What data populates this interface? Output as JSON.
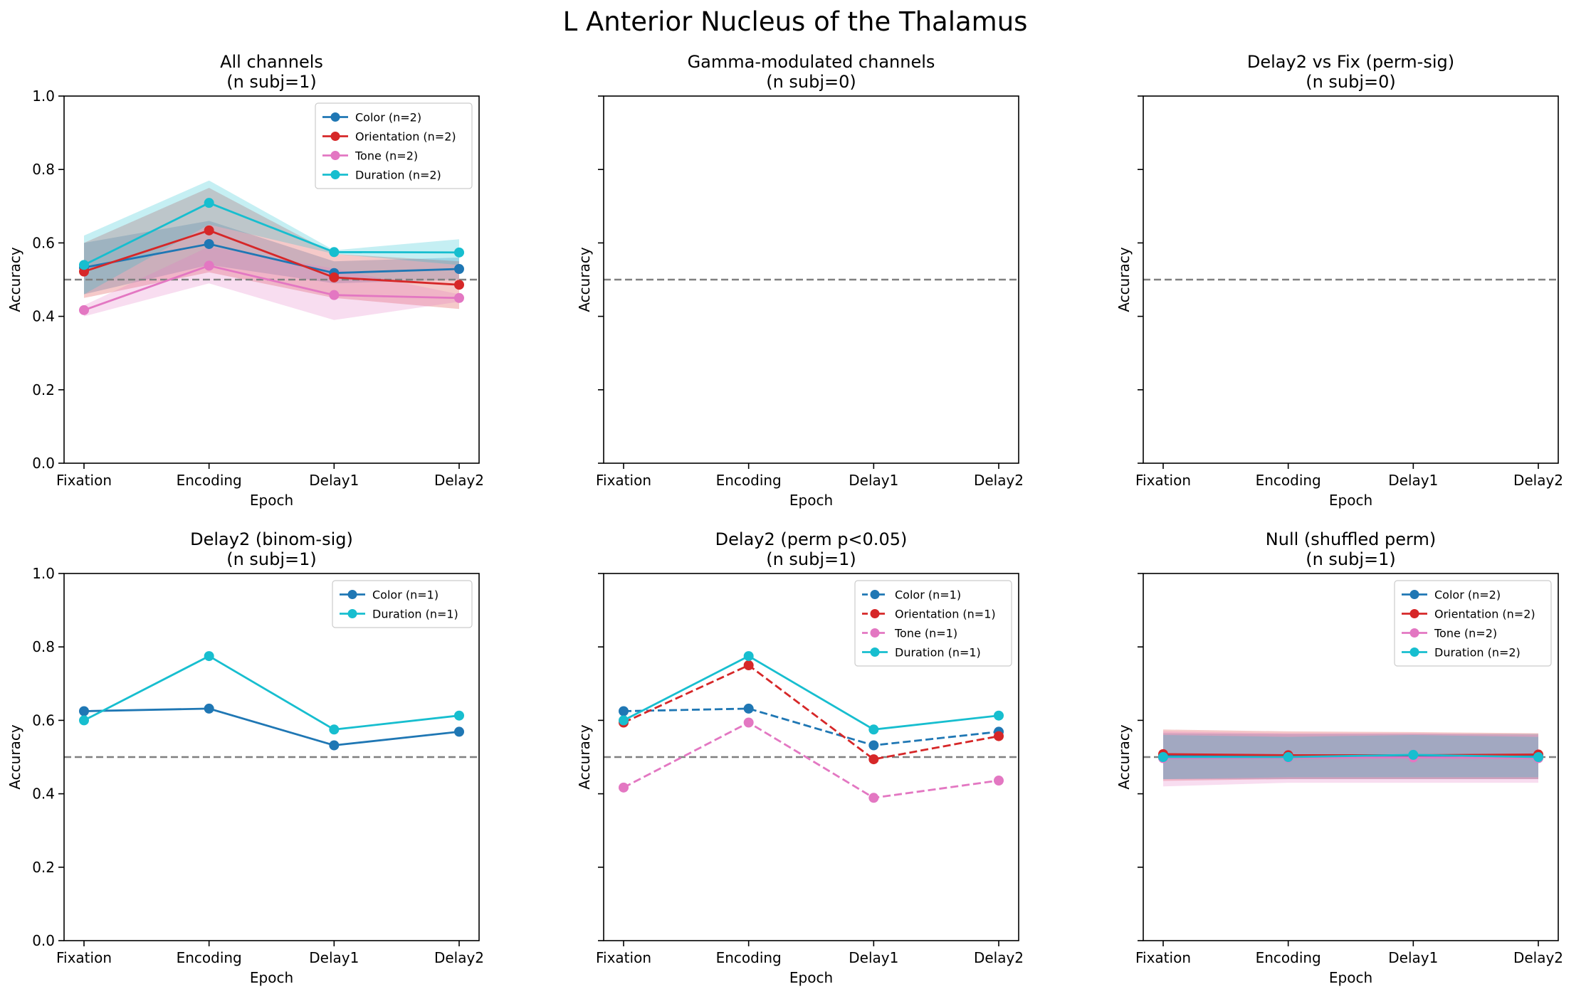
{
  "title": "L Anterior Nucleus of the Thalamus",
  "colors": {
    "Color": "#1f77b4",
    "Orientation": "#d62728",
    "Tone": "#e377c2",
    "Duration": "#17becf",
    "chance": "#808080"
  },
  "chart_data": [
    {
      "type": "line",
      "title": "All channels",
      "subtitle": "(n subj=1)",
      "xlabel": "Epoch",
      "ylabel": "Accuracy",
      "categories": [
        "Fixation",
        "Encoding",
        "Delay1",
        "Delay2"
      ],
      "ylim": [
        0,
        1
      ],
      "yticks": [
        "0.0",
        "0.2",
        "0.4",
        "0.6",
        "0.8",
        "1.0"
      ],
      "show_ytick_labels": true,
      "chance": 0.5,
      "legend": "top-right",
      "series": [
        {
          "name": "Color",
          "label": "Color (n=2)",
          "values": [
            0.533,
            0.597,
            0.518,
            0.529
          ],
          "lower": [
            0.46,
            0.54,
            0.49,
            0.5
          ],
          "upper": [
            0.6,
            0.66,
            0.55,
            0.56
          ],
          "dashed": false
        },
        {
          "name": "Orientation",
          "label": "Orientation (n=2)",
          "values": [
            0.522,
            0.634,
            0.506,
            0.486
          ],
          "lower": [
            0.45,
            0.52,
            0.45,
            0.42
          ],
          "upper": [
            0.6,
            0.75,
            0.57,
            0.55
          ],
          "dashed": false
        },
        {
          "name": "Tone",
          "label": "Tone (n=2)",
          "values": [
            0.417,
            0.538,
            0.458,
            0.45
          ],
          "lower": [
            0.4,
            0.49,
            0.39,
            0.44
          ],
          "upper": [
            0.43,
            0.59,
            0.53,
            0.46
          ],
          "dashed": false
        },
        {
          "name": "Duration",
          "label": "Duration (n=2)",
          "values": [
            0.54,
            0.709,
            0.575,
            0.574
          ],
          "lower": [
            0.46,
            0.65,
            0.57,
            0.54
          ],
          "upper": [
            0.62,
            0.77,
            0.58,
            0.61
          ],
          "dashed": false
        }
      ]
    },
    {
      "type": "line",
      "title": "Gamma-modulated channels",
      "subtitle": "(n subj=0)",
      "xlabel": "Epoch",
      "ylabel": "Accuracy",
      "categories": [
        "Fixation",
        "Encoding",
        "Delay1",
        "Delay2"
      ],
      "ylim": [
        0,
        1
      ],
      "yticks": [
        "0.0",
        "0.2",
        "0.4",
        "0.6",
        "0.8",
        "1.0"
      ],
      "show_ytick_labels": false,
      "chance": 0.5,
      "legend": "none",
      "series": []
    },
    {
      "type": "line",
      "title": "Delay2 vs Fix (perm-sig)",
      "subtitle": "(n subj=0)",
      "xlabel": "Epoch",
      "ylabel": "Accuracy",
      "categories": [
        "Fixation",
        "Encoding",
        "Delay1",
        "Delay2"
      ],
      "ylim": [
        0,
        1
      ],
      "yticks": [
        "0.0",
        "0.2",
        "0.4",
        "0.6",
        "0.8",
        "1.0"
      ],
      "show_ytick_labels": false,
      "chance": 0.5,
      "legend": "none",
      "series": []
    },
    {
      "type": "line",
      "title": "Delay2 (binom-sig)",
      "subtitle": "(n subj=1)",
      "xlabel": "Epoch",
      "ylabel": "Accuracy",
      "categories": [
        "Fixation",
        "Encoding",
        "Delay1",
        "Delay2"
      ],
      "ylim": [
        0,
        1
      ],
      "yticks": [
        "0.0",
        "0.2",
        "0.4",
        "0.6",
        "0.8",
        "1.0"
      ],
      "show_ytick_labels": true,
      "chance": 0.5,
      "legend": "top-right",
      "series": [
        {
          "name": "Color",
          "label": "Color (n=1)",
          "values": [
            0.625,
            0.632,
            0.532,
            0.569
          ],
          "dashed": false
        },
        {
          "name": "Duration",
          "label": "Duration (n=1)",
          "values": [
            0.6,
            0.775,
            0.575,
            0.613
          ],
          "dashed": false
        }
      ]
    },
    {
      "type": "line",
      "title": "Delay2 (perm p<0.05)",
      "subtitle": "(n subj=1)",
      "xlabel": "Epoch",
      "ylabel": "Accuracy",
      "categories": [
        "Fixation",
        "Encoding",
        "Delay1",
        "Delay2"
      ],
      "ylim": [
        0,
        1
      ],
      "yticks": [
        "0.0",
        "0.2",
        "0.4",
        "0.6",
        "0.8",
        "1.0"
      ],
      "show_ytick_labels": false,
      "chance": 0.5,
      "legend": "top-right",
      "series": [
        {
          "name": "Color",
          "label": "Color (n=1)",
          "values": [
            0.625,
            0.632,
            0.532,
            0.569
          ],
          "dashed": true
        },
        {
          "name": "Orientation",
          "label": "Orientation (n=1)",
          "values": [
            0.594,
            0.75,
            0.494,
            0.557
          ],
          "dashed": true
        },
        {
          "name": "Tone",
          "label": "Tone (n=1)",
          "values": [
            0.417,
            0.594,
            0.389,
            0.436
          ],
          "dashed": true
        },
        {
          "name": "Duration",
          "label": "Duration (n=1)",
          "values": [
            0.6,
            0.775,
            0.575,
            0.613
          ],
          "dashed": false
        }
      ]
    },
    {
      "type": "line",
      "title": "Null (shuffled perm)",
      "subtitle": "(n subj=1)",
      "xlabel": "Epoch",
      "ylabel": "Accuracy",
      "categories": [
        "Fixation",
        "Encoding",
        "Delay1",
        "Delay2"
      ],
      "ylim": [
        0,
        1
      ],
      "yticks": [
        "0.0",
        "0.2",
        "0.4",
        "0.6",
        "0.8",
        "1.0"
      ],
      "show_ytick_labels": false,
      "chance": 0.5,
      "legend": "top-right",
      "series": [
        {
          "name": "Color",
          "label": "Color (n=2)",
          "values": [
            0.505,
            0.502,
            0.503,
            0.503
          ],
          "lower": [
            0.44,
            0.44,
            0.44,
            0.44
          ],
          "upper": [
            0.565,
            0.563,
            0.563,
            0.563
          ],
          "dashed": false
        },
        {
          "name": "Orientation",
          "label": "Orientation (n=2)",
          "values": [
            0.508,
            0.505,
            0.505,
            0.507
          ],
          "lower": [
            0.435,
            0.44,
            0.44,
            0.44
          ],
          "upper": [
            0.575,
            0.57,
            0.568,
            0.565
          ],
          "dashed": false
        },
        {
          "name": "Tone",
          "label": "Tone (n=2)",
          "values": [
            0.497,
            0.498,
            0.499,
            0.497
          ],
          "lower": [
            0.42,
            0.43,
            0.43,
            0.43
          ],
          "upper": [
            0.57,
            0.565,
            0.565,
            0.56
          ],
          "dashed": false
        },
        {
          "name": "Duration",
          "label": "Duration (n=2)",
          "values": [
            0.5,
            0.5,
            0.506,
            0.5
          ],
          "lower": [
            0.44,
            0.445,
            0.445,
            0.445
          ],
          "upper": [
            0.56,
            0.555,
            0.56,
            0.555
          ],
          "dashed": false
        }
      ]
    }
  ]
}
